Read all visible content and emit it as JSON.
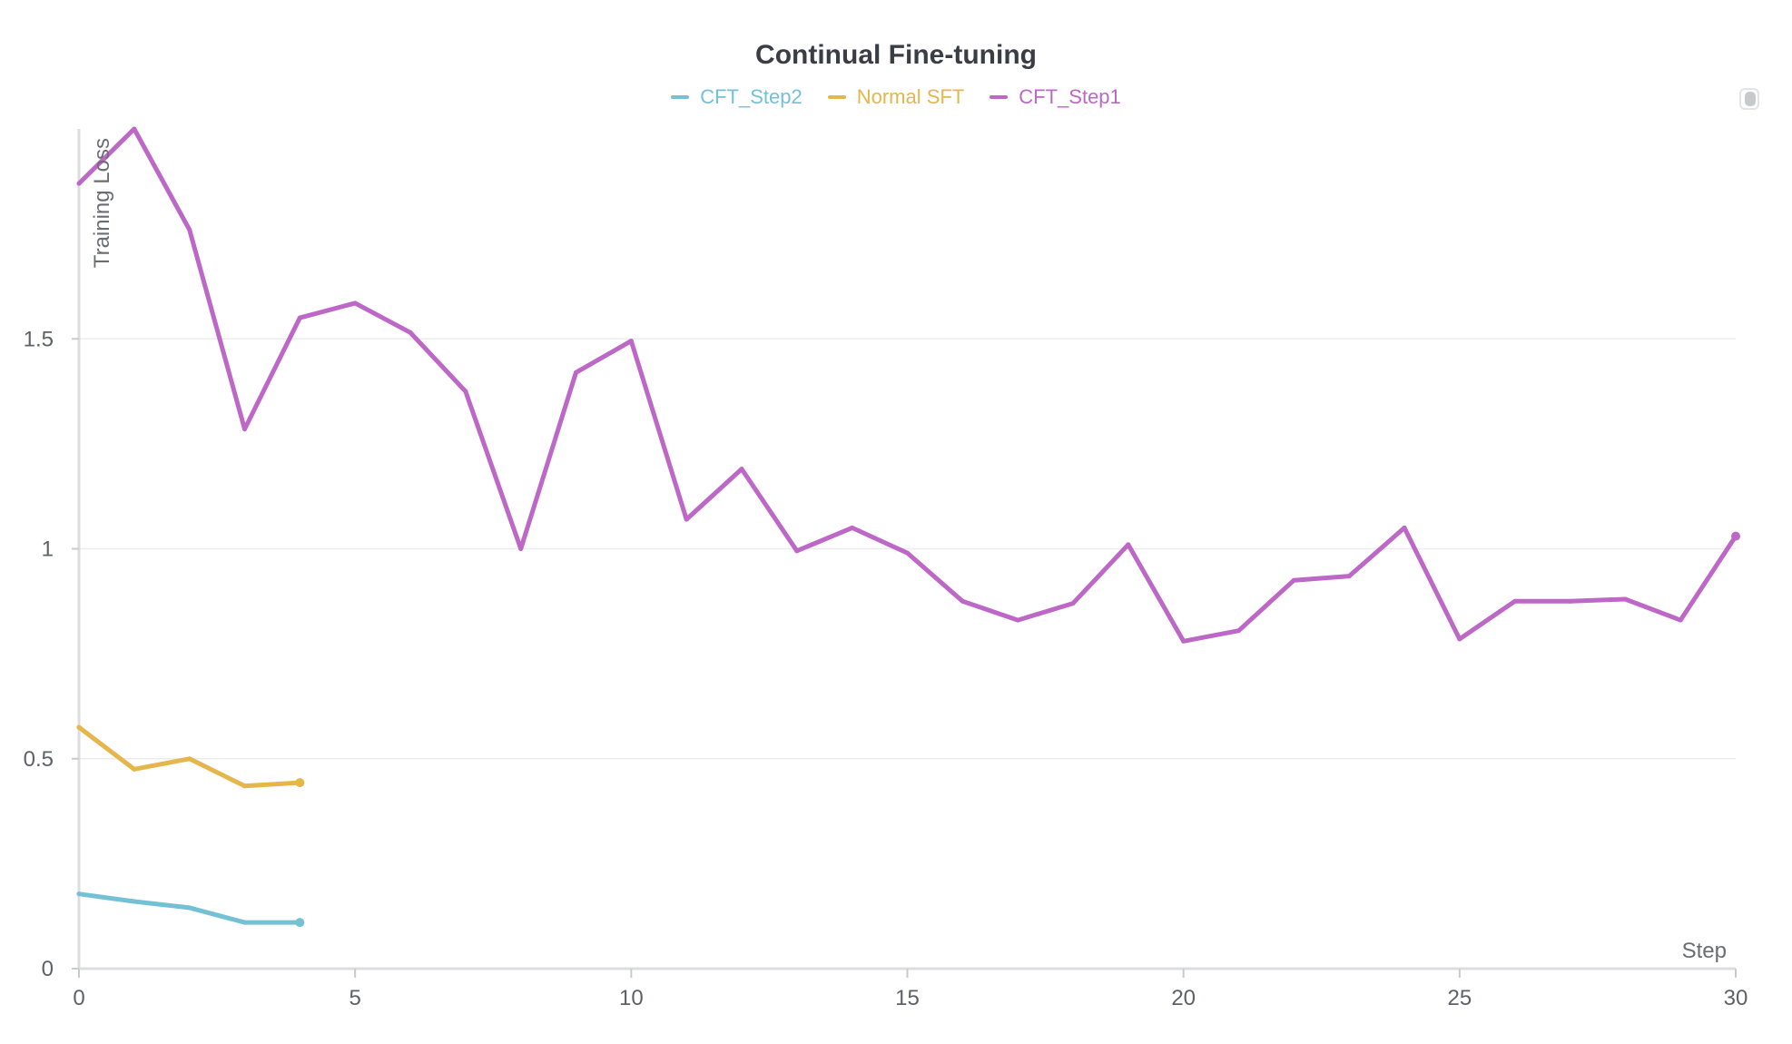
{
  "chart_data": {
    "type": "line",
    "title": "Continual Fine-tuning",
    "xlabel": "Step",
    "ylabel": "Training Loss",
    "xlim": [
      0,
      30
    ],
    "ylim": [
      0,
      2
    ],
    "x_ticks": [
      0,
      5,
      10,
      15,
      20,
      25,
      30
    ],
    "y_ticks": [
      0,
      0.5,
      1,
      1.5
    ],
    "y_tick_labels": [
      "0",
      "0.5",
      "1",
      "1.5"
    ],
    "grid": "horizontal",
    "legend_position": "top-center",
    "series": [
      {
        "name": "CFT_Step2",
        "color": "#74c1d6",
        "x": [
          0,
          1,
          2,
          3,
          4
        ],
        "y": [
          0.178,
          0.16,
          0.145,
          0.11,
          0.11
        ]
      },
      {
        "name": "Normal SFT",
        "color": "#e4b64b",
        "x": [
          0,
          1,
          2,
          3,
          4
        ],
        "y": [
          0.575,
          0.475,
          0.5,
          0.435,
          0.443
        ]
      },
      {
        "name": "CFT_Step1",
        "color": "#bd67c7",
        "x": [
          0,
          1,
          2,
          3,
          4,
          5,
          6,
          7,
          8,
          9,
          10,
          11,
          12,
          13,
          14,
          15,
          16,
          17,
          18,
          19,
          20,
          21,
          22,
          23,
          24,
          25,
          26,
          27,
          28,
          29,
          30
        ],
        "y": [
          1.87,
          2.0,
          1.76,
          1.285,
          1.55,
          1.585,
          1.515,
          1.375,
          1.0,
          1.42,
          1.495,
          1.07,
          1.19,
          0.995,
          1.05,
          0.99,
          0.875,
          0.83,
          0.87,
          1.01,
          0.78,
          0.805,
          0.925,
          0.935,
          1.05,
          0.785,
          0.875,
          0.875,
          0.88,
          0.83,
          1.03
        ]
      }
    ]
  }
}
